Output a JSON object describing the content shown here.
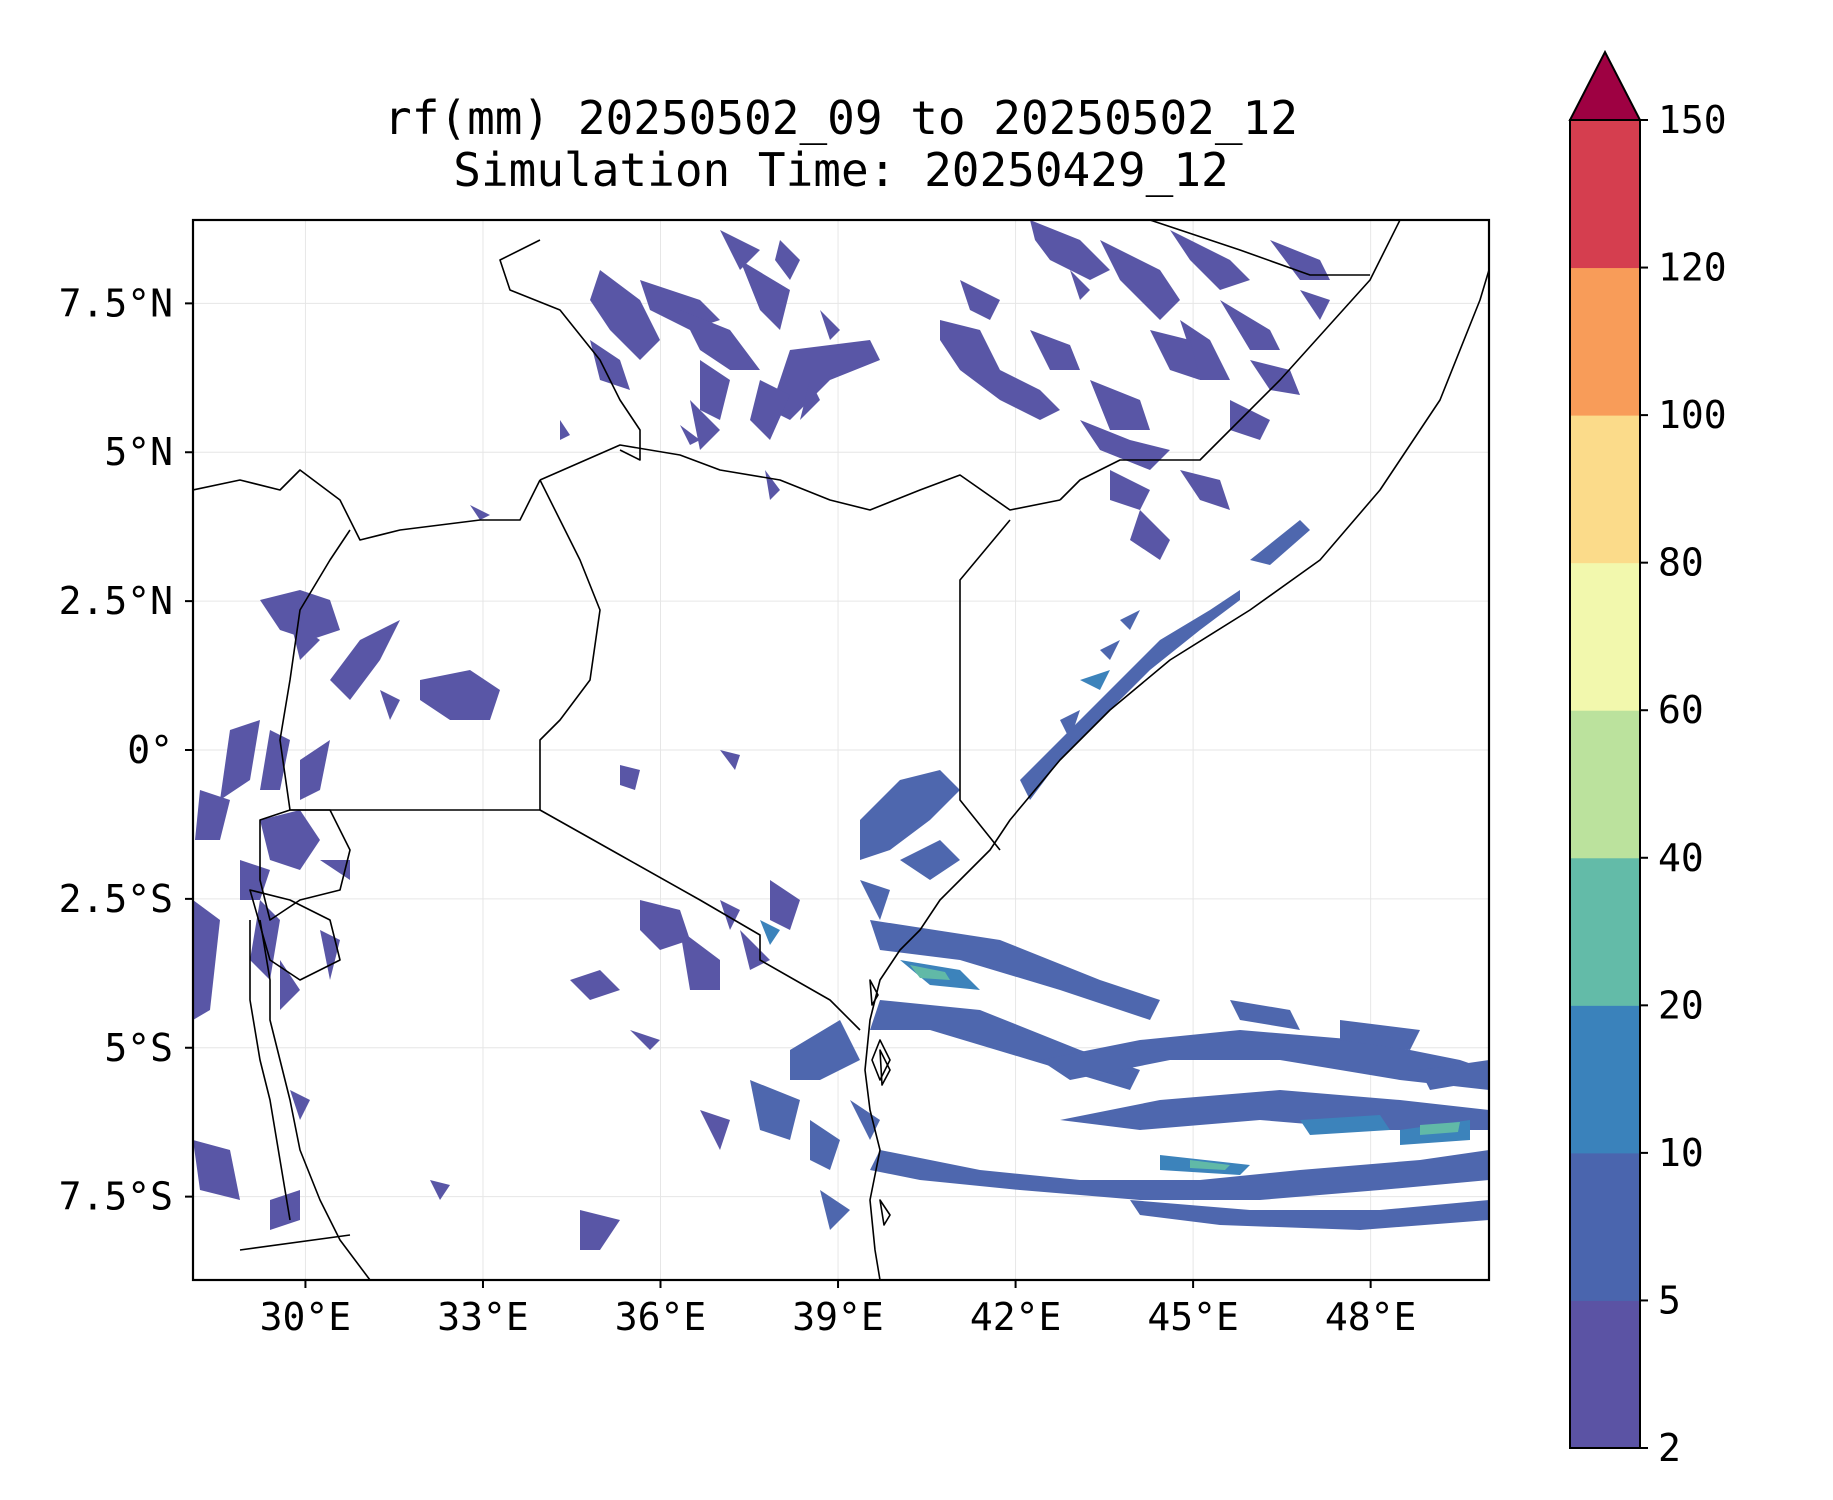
{
  "title": {
    "line1": "rf(mm) 20250502_09 to 20250502_12",
    "line2": "Simulation Time: 20250429_12"
  },
  "map": {
    "region": "East Africa",
    "lon_range": [
      28.1,
      50.0
    ],
    "lat_range": [
      -8.9,
      8.9
    ],
    "lon_ticks": [
      30,
      33,
      36,
      39,
      42,
      45,
      48
    ],
    "lon_tick_labels": [
      "30°E",
      "33°E",
      "36°E",
      "39°E",
      "42°E",
      "45°E",
      "48°E"
    ],
    "lat_ticks": [
      7.5,
      5,
      2.5,
      0,
      -2.5,
      -5,
      -7.5
    ],
    "lat_tick_labels": [
      "7.5°N",
      "5°N",
      "2.5°N",
      "0°",
      "2.5°S",
      "5°S",
      "7.5°S"
    ],
    "grid": true,
    "rain_fill_colors": {
      "light": "#5956a6",
      "moderate": "#4e67ae",
      "heavy": "#3c83bb",
      "very_heavy": "#61b9a7"
    }
  },
  "colorbar": {
    "levels": [
      2,
      5,
      10,
      20,
      40,
      60,
      80,
      100,
      120,
      150
    ],
    "tick_labels": [
      "2",
      "5",
      "10",
      "20",
      "40",
      "60",
      "80",
      "100",
      "120",
      "150"
    ],
    "colors": [
      "#5b53a4",
      "#4a65ae",
      "#3a82bb",
      "#63bba8",
      "#bbe29d",
      "#f2f8ad",
      "#fbdb8a",
      "#f89c59",
      "#d53e4f"
    ],
    "extend_color": "#9e0142",
    "extend": "max"
  }
}
